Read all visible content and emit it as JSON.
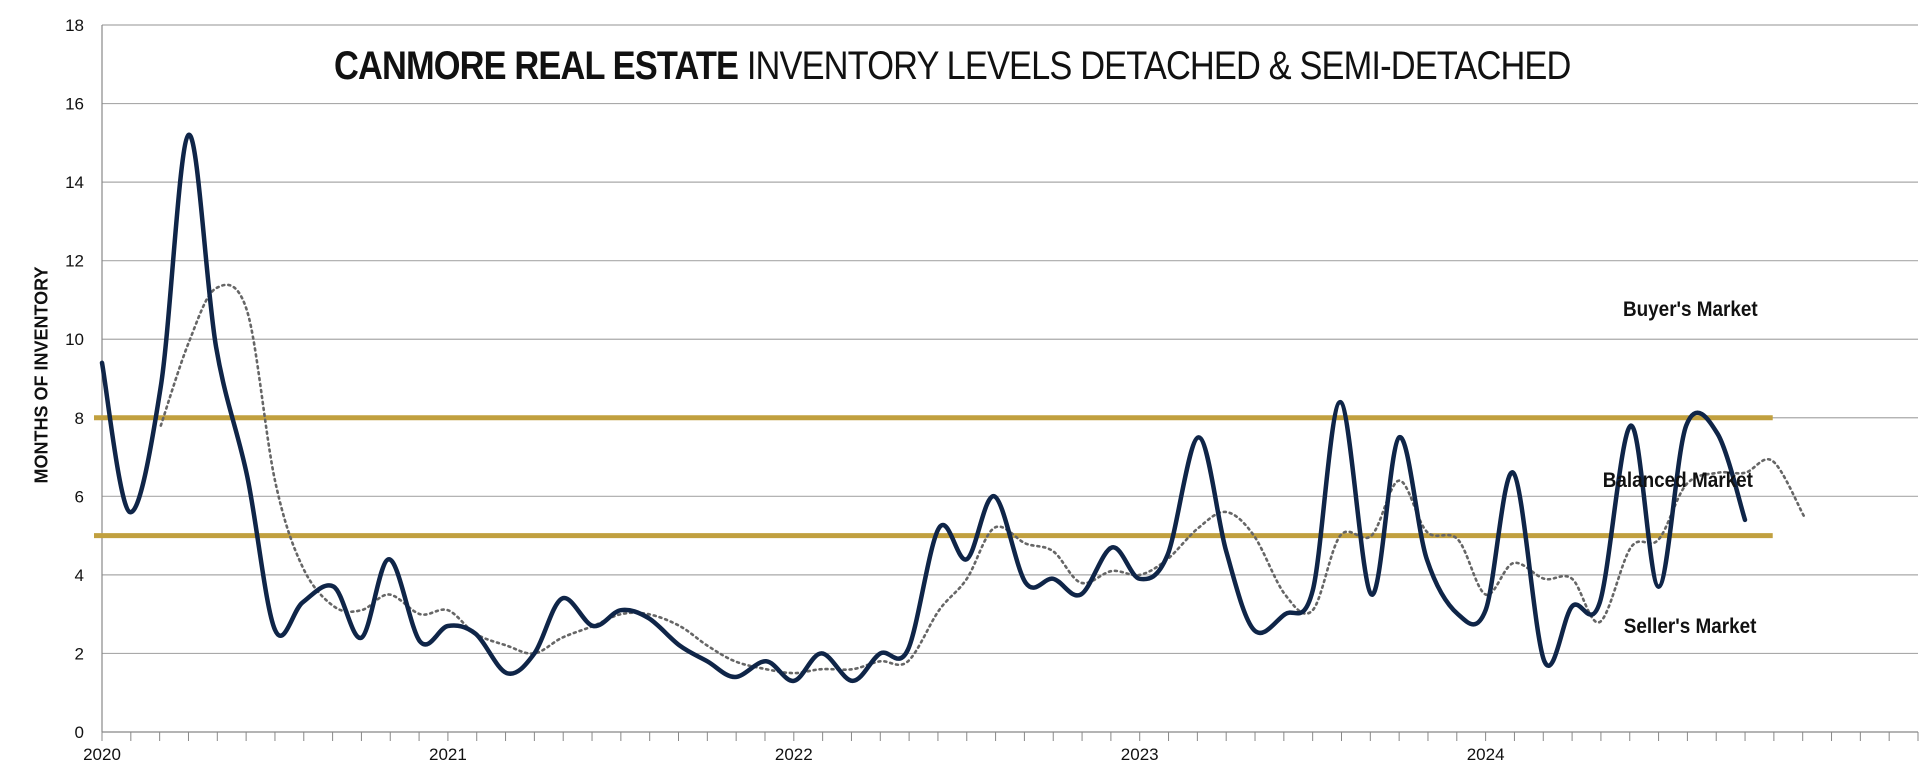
{
  "chart_data": {
    "type": "line",
    "title_bold": "CANMORE REAL ESTATE",
    "title_rest": "INVENTORY LEVELS DETACHED & SEMI-DETACHED",
    "ylabel": "MONTHS OF INVENTORY",
    "xlabel": "",
    "ylim": [
      0,
      18
    ],
    "yticks": [
      0,
      2,
      4,
      6,
      8,
      10,
      12,
      14,
      16,
      18
    ],
    "xlim": [
      2020.0,
      2025.25
    ],
    "xticks": [
      {
        "x": 2020,
        "label": "2020"
      },
      {
        "x": 2021,
        "label": "2021"
      },
      {
        "x": 2022,
        "label": "2022"
      },
      {
        "x": 2023,
        "label": "2023"
      },
      {
        "x": 2024,
        "label": "2024"
      }
    ],
    "grid": true,
    "zones": {
      "buyers": "Buyer's Market",
      "balanced": "Balanced Market",
      "sellers": "Seller's Market"
    },
    "thresholds": [
      {
        "y": 8,
        "x_start": 2020.0,
        "x_end": 2024.83
      },
      {
        "y": 5,
        "x_start": 2020.0,
        "x_end": 2024.83
      }
    ],
    "series": [
      {
        "style": "solid",
        "color": "#0f2548",
        "x": [
          2020.0,
          2020.08,
          2020.17,
          2020.25,
          2020.33,
          2020.42,
          2020.5,
          2020.58,
          2020.67,
          2020.75,
          2020.83,
          2020.92,
          2021.0,
          2021.08,
          2021.17,
          2021.25,
          2021.33,
          2021.42,
          2021.5,
          2021.58,
          2021.67,
          2021.75,
          2021.83,
          2021.92,
          2022.0,
          2022.08,
          2022.17,
          2022.25,
          2022.33,
          2022.42,
          2022.5,
          2022.58,
          2022.67,
          2022.75,
          2022.83,
          2022.92,
          2023.0,
          2023.08,
          2023.17,
          2023.25,
          2023.33,
          2023.42,
          2023.5,
          2023.58,
          2023.67,
          2023.75,
          2023.83,
          2023.92,
          2024.0,
          2024.08,
          2024.17,
          2024.25,
          2024.33,
          2024.42,
          2024.5,
          2024.58,
          2024.67,
          2024.75
        ],
        "values": [
          9.4,
          5.6,
          8.8,
          15.2,
          9.8,
          6.5,
          2.6,
          3.3,
          3.7,
          2.4,
          4.4,
          2.3,
          2.7,
          2.5,
          1.5,
          2.0,
          3.4,
          2.7,
          3.1,
          2.9,
          2.2,
          1.8,
          1.4,
          1.8,
          1.3,
          2.0,
          1.3,
          2.0,
          2.1,
          5.2,
          4.4,
          6.0,
          3.8,
          3.9,
          3.5,
          4.7,
          3.9,
          4.5,
          7.5,
          4.6,
          2.6,
          3.0,
          3.6,
          8.4,
          3.5,
          7.5,
          4.4,
          3.0,
          3.1,
          6.6,
          1.8,
          3.2,
          3.3,
          7.8,
          3.7,
          7.8,
          7.6,
          5.4
        ]
      },
      {
        "style": "dotted",
        "color": "#666666",
        "x": [
          2020.17,
          2020.25,
          2020.33,
          2020.42,
          2020.5,
          2020.58,
          2020.67,
          2020.75,
          2020.83,
          2020.92,
          2021.0,
          2021.08,
          2021.17,
          2021.25,
          2021.33,
          2021.42,
          2021.5,
          2021.58,
          2021.67,
          2021.75,
          2021.83,
          2021.92,
          2022.0,
          2022.08,
          2022.17,
          2022.25,
          2022.33,
          2022.42,
          2022.5,
          2022.58,
          2022.67,
          2022.75,
          2022.83,
          2022.92,
          2023.0,
          2023.08,
          2023.17,
          2023.25,
          2023.33,
          2023.42,
          2023.5,
          2023.58,
          2023.67,
          2023.75,
          2023.83,
          2023.92,
          2024.0,
          2024.08,
          2024.17,
          2024.25,
          2024.33,
          2024.42,
          2024.5,
          2024.58,
          2024.67,
          2024.75,
          2024.83,
          2024.92
        ],
        "values": [
          7.8,
          9.9,
          11.3,
          10.7,
          6.4,
          4.2,
          3.2,
          3.1,
          3.5,
          3.0,
          3.1,
          2.5,
          2.2,
          2.0,
          2.4,
          2.7,
          3.0,
          3.0,
          2.7,
          2.2,
          1.8,
          1.6,
          1.5,
          1.6,
          1.6,
          1.8,
          1.8,
          3.1,
          3.9,
          5.2,
          4.8,
          4.6,
          3.8,
          4.1,
          4.0,
          4.4,
          5.2,
          5.6,
          5.0,
          3.5,
          3.1,
          5.0,
          5.0,
          6.4,
          5.1,
          4.9,
          3.5,
          4.3,
          3.9,
          3.9,
          2.8,
          4.7,
          4.9,
          6.3,
          6.6,
          6.6,
          6.9,
          5.5
        ]
      }
    ]
  }
}
